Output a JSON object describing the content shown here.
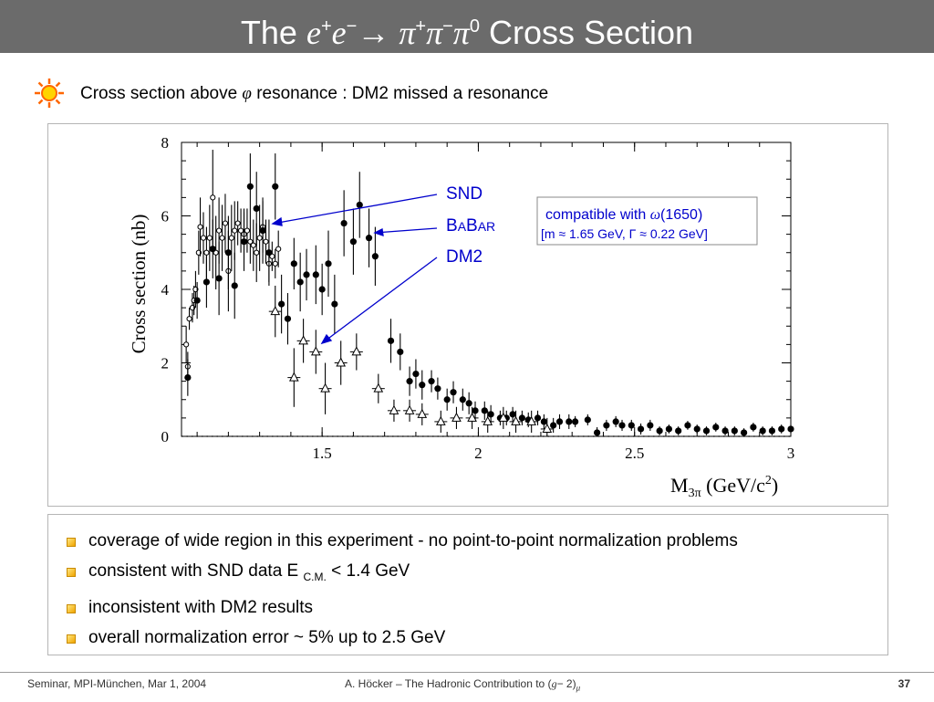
{
  "slide": {
    "title": {
      "prefix": "The ",
      "e1": "e",
      "plus1": "+",
      "e2": "e",
      "minus1": "−",
      "arrow": "→ ",
      "pi1": "π",
      "plus2": "+",
      "pi2": "π",
      "minus2": "−",
      "pi3": "π",
      "zero": "0",
      "suffix": " Cross Section"
    },
    "subtitle": {
      "before": "Cross section above ",
      "phi": "φ",
      "after": " resonance : DM2 missed a resonance"
    },
    "bullets": [
      {
        "text": "coverage of wide region in this experiment - no point-to-point normalization problems"
      },
      {
        "text": "consistent with SND data E ",
        "sub": "C.M.",
        "tail": " < 1.4 GeV"
      },
      {
        "text": "inconsistent with DM2 results"
      },
      {
        "text": "overall normalization error  ~ 5% up to 2.5 GeV"
      }
    ],
    "footer": {
      "left": "Seminar, MPI-München, Mar 1, 2004",
      "center_prefix": "A. Höcker – The Hadronic Contribution to (",
      "center_g": "g",
      "center_mid": "− 2)",
      "center_mu": "μ",
      "page": "37"
    },
    "colors": {
      "title_bg": "#6b6b6b",
      "annotation": "#0000cc",
      "sun": "#ff6600"
    },
    "icons": {
      "bullet_marker": "sun-icon",
      "list_marker": "square-bullet-icon"
    }
  },
  "chart_data": {
    "type": "scatter",
    "ylabel": "Cross section (nb)",
    "xlabel": {
      "main": "M",
      "sub": "3π",
      "unit": " (GeV/c",
      "sup": "2",
      "close": ")"
    },
    "xlim": [
      1.05,
      3.0
    ],
    "ylim": [
      0,
      8
    ],
    "xticks": [
      1.5,
      2,
      2.5,
      3
    ],
    "xtick_labels": [
      "1.5",
      "2",
      "2.5",
      "3"
    ],
    "yticks": [
      0,
      2,
      4,
      6,
      8
    ],
    "ytick_labels": [
      "0",
      "2",
      "4",
      "6",
      "8"
    ],
    "zero_line": "dotted",
    "annotations": {
      "snd": "SND",
      "babar_b1": "B",
      "babar_a1": "A",
      "babar_b2": "B",
      "babar_a2": "AR",
      "dm2": "DM2",
      "box_line1_text": "compatible with ",
      "box_line1_omega": "ω",
      "box_line1_mass": "(1650)",
      "box_line2": "[m ≈ 1.65 GeV, Γ ≈ 0.22 GeV]"
    },
    "series": [
      {
        "name": "SND",
        "marker": "open-circle",
        "points": [
          [
            1.065,
            2.5,
            0.5
          ],
          [
            1.07,
            1.9,
            0.4
          ],
          [
            1.075,
            3.2,
            0.3
          ],
          [
            1.085,
            3.5,
            0.4
          ],
          [
            1.09,
            3.7,
            0.4
          ],
          [
            1.095,
            4.0,
            0.5
          ],
          [
            1.105,
            5.0,
            0.6
          ],
          [
            1.11,
            5.7,
            0.8
          ],
          [
            1.12,
            5.4,
            0.7
          ],
          [
            1.13,
            5.0,
            0.7
          ],
          [
            1.14,
            5.4,
            0.9
          ],
          [
            1.15,
            6.5,
            1.3
          ],
          [
            1.16,
            5.0,
            1.0
          ],
          [
            1.17,
            5.6,
            0.9
          ],
          [
            1.18,
            5.4,
            0.9
          ],
          [
            1.19,
            5.8,
            0.8
          ],
          [
            1.2,
            4.5,
            1.1
          ],
          [
            1.21,
            5.4,
            0.9
          ],
          [
            1.22,
            5.6,
            0.8
          ],
          [
            1.23,
            5.8,
            0.6
          ],
          [
            1.24,
            5.6,
            0.6
          ],
          [
            1.25,
            5.5,
            0.7
          ],
          [
            1.26,
            5.6,
            0.6
          ],
          [
            1.27,
            5.3,
            0.6
          ],
          [
            1.28,
            5.2,
            0.7
          ],
          [
            1.29,
            5.0,
            0.8
          ],
          [
            1.3,
            5.4,
            0.9
          ],
          [
            1.31,
            5.7,
            0.7
          ],
          [
            1.32,
            5.3,
            0.6
          ],
          [
            1.33,
            4.7,
            0.5
          ],
          [
            1.34,
            4.9,
            0.4
          ],
          [
            1.35,
            4.7,
            0.4
          ],
          [
            1.36,
            5.1,
            0.5
          ]
        ]
      },
      {
        "name": "BABAR",
        "marker": "filled-circle",
        "points": [
          [
            1.07,
            1.6,
            0.5
          ],
          [
            1.1,
            3.7,
            0.5
          ],
          [
            1.13,
            4.2,
            0.7
          ],
          [
            1.15,
            5.1,
            0.8
          ],
          [
            1.17,
            4.3,
            1.0
          ],
          [
            1.2,
            5.0,
            1.0
          ],
          [
            1.22,
            4.1,
            0.9
          ],
          [
            1.25,
            5.3,
            0.8
          ],
          [
            1.27,
            6.8,
            0.9
          ],
          [
            1.29,
            6.2,
            1.0
          ],
          [
            1.31,
            5.6,
            0.9
          ],
          [
            1.33,
            5.0,
            0.9
          ],
          [
            1.35,
            6.8,
            0.9
          ],
          [
            1.37,
            3.6,
            0.8
          ],
          [
            1.39,
            3.2,
            0.7
          ],
          [
            1.41,
            4.7,
            0.7
          ],
          [
            1.43,
            4.2,
            0.8
          ],
          [
            1.45,
            4.4,
            0.7
          ],
          [
            1.48,
            4.4,
            0.8
          ],
          [
            1.5,
            4.0,
            0.7
          ],
          [
            1.52,
            4.7,
            0.9
          ],
          [
            1.54,
            3.6,
            0.8
          ],
          [
            1.57,
            5.8,
            0.9
          ],
          [
            1.6,
            5.3,
            0.9
          ],
          [
            1.62,
            6.3,
            0.9
          ],
          [
            1.65,
            5.4,
            0.8
          ],
          [
            1.67,
            4.9,
            0.8
          ],
          [
            1.72,
            2.6,
            0.6
          ],
          [
            1.75,
            2.3,
            0.5
          ],
          [
            1.78,
            1.5,
            0.4
          ],
          [
            1.8,
            1.7,
            0.4
          ],
          [
            1.82,
            1.4,
            0.4
          ],
          [
            1.85,
            1.5,
            0.3
          ],
          [
            1.87,
            1.3,
            0.3
          ],
          [
            1.9,
            1.0,
            0.3
          ],
          [
            1.92,
            1.2,
            0.3
          ],
          [
            1.95,
            1.0,
            0.3
          ],
          [
            1.97,
            0.9,
            0.3
          ],
          [
            1.99,
            0.7,
            0.25
          ],
          [
            2.02,
            0.7,
            0.25
          ],
          [
            2.04,
            0.6,
            0.25
          ],
          [
            2.07,
            0.5,
            0.2
          ],
          [
            2.09,
            0.5,
            0.2
          ],
          [
            2.11,
            0.6,
            0.2
          ],
          [
            2.14,
            0.5,
            0.2
          ],
          [
            2.16,
            0.45,
            0.2
          ],
          [
            2.19,
            0.5,
            0.2
          ],
          [
            2.21,
            0.4,
            0.2
          ],
          [
            2.24,
            0.3,
            0.2
          ],
          [
            2.26,
            0.4,
            0.2
          ],
          [
            2.29,
            0.4,
            0.2
          ],
          [
            2.31,
            0.4,
            0.15
          ],
          [
            2.35,
            0.45,
            0.15
          ],
          [
            2.38,
            0.1,
            0.15
          ],
          [
            2.41,
            0.3,
            0.15
          ],
          [
            2.44,
            0.4,
            0.15
          ],
          [
            2.46,
            0.3,
            0.15
          ],
          [
            2.49,
            0.3,
            0.15
          ],
          [
            2.52,
            0.2,
            0.15
          ],
          [
            2.55,
            0.3,
            0.15
          ],
          [
            2.58,
            0.15,
            0.12
          ],
          [
            2.61,
            0.2,
            0.12
          ],
          [
            2.64,
            0.15,
            0.12
          ],
          [
            2.67,
            0.3,
            0.12
          ],
          [
            2.7,
            0.2,
            0.12
          ],
          [
            2.73,
            0.15,
            0.12
          ],
          [
            2.76,
            0.25,
            0.12
          ],
          [
            2.79,
            0.15,
            0.12
          ],
          [
            2.82,
            0.15,
            0.12
          ],
          [
            2.85,
            0.1,
            0.12
          ],
          [
            2.88,
            0.25,
            0.12
          ],
          [
            2.91,
            0.15,
            0.12
          ],
          [
            2.94,
            0.15,
            0.12
          ],
          [
            2.97,
            0.2,
            0.12
          ],
          [
            3.0,
            0.2,
            0.12
          ]
        ]
      },
      {
        "name": "DM2",
        "marker": "open-triangle",
        "points": [
          [
            1.35,
            3.4,
            0.7
          ],
          [
            1.41,
            1.6,
            0.8
          ],
          [
            1.44,
            2.6,
            0.6
          ],
          [
            1.48,
            2.3,
            0.6
          ],
          [
            1.51,
            1.3,
            0.7
          ],
          [
            1.56,
            2.0,
            0.6
          ],
          [
            1.61,
            2.3,
            0.5
          ],
          [
            1.68,
            1.3,
            0.4
          ],
          [
            1.73,
            0.7,
            0.3
          ],
          [
            1.78,
            0.7,
            0.3
          ],
          [
            1.82,
            0.6,
            0.3
          ],
          [
            1.88,
            0.4,
            0.3
          ],
          [
            1.93,
            0.5,
            0.3
          ],
          [
            1.98,
            0.5,
            0.3
          ],
          [
            2.03,
            0.4,
            0.3
          ],
          [
            2.08,
            0.5,
            0.3
          ],
          [
            2.12,
            0.4,
            0.3
          ],
          [
            2.17,
            0.4,
            0.3
          ],
          [
            2.22,
            0.2,
            0.3
          ]
        ]
      }
    ]
  }
}
